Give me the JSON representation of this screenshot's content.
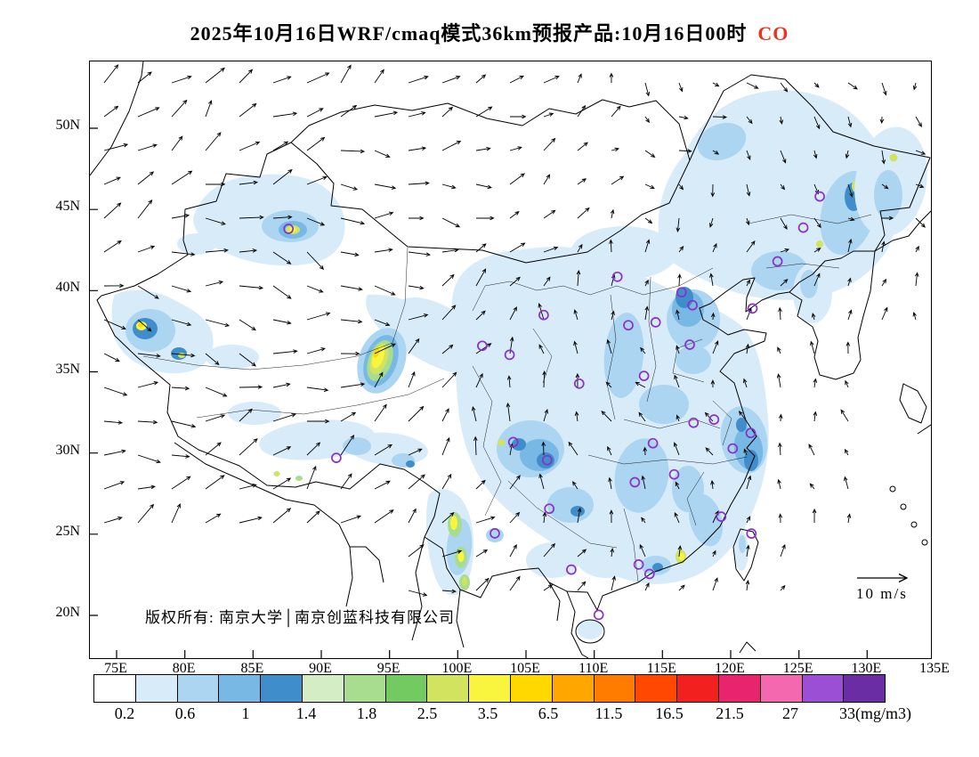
{
  "title": {
    "main": "2025年10月16日WRF/cmaq模式36km预报产品:10月16日00时",
    "species": "CO"
  },
  "map": {
    "copyright": "版权所有: 南京大学│南京创蓝科技有限公司",
    "wind_legend_label": "10 m/s",
    "axes": {
      "lat_labels": [
        "50N",
        "45N",
        "40N",
        "35N",
        "30N",
        "25N",
        "20N"
      ],
      "lon_labels": [
        "75E",
        "80E",
        "85E",
        "90E",
        "95E",
        "100E",
        "105E",
        "110E",
        "115E",
        "120E",
        "125E",
        "130E",
        "135E"
      ]
    },
    "marker_color": "#8b2fc9",
    "stations": [
      [
        87.6,
        43.8
      ],
      [
        91.1,
        29.7
      ],
      [
        101.8,
        36.6
      ],
      [
        103.8,
        36.05
      ],
      [
        106.3,
        38.5
      ],
      [
        111.7,
        40.85
      ],
      [
        112.5,
        37.87
      ],
      [
        114.5,
        38.05
      ],
      [
        116.4,
        39.9
      ],
      [
        117.2,
        39.1
      ],
      [
        117.0,
        36.67
      ],
      [
        113.65,
        34.75
      ],
      [
        108.9,
        34.27
      ],
      [
        104.07,
        30.67
      ],
      [
        106.55,
        29.56
      ],
      [
        114.3,
        30.6
      ],
      [
        117.28,
        31.86
      ],
      [
        118.78,
        32.06
      ],
      [
        121.47,
        31.23
      ],
      [
        120.15,
        30.28
      ],
      [
        112.98,
        28.2
      ],
      [
        115.86,
        28.68
      ],
      [
        106.71,
        26.57
      ],
      [
        102.72,
        25.05
      ],
      [
        108.32,
        22.82
      ],
      [
        113.26,
        23.13
      ],
      [
        114.05,
        22.55
      ],
      [
        119.3,
        26.08
      ],
      [
        121.52,
        25.04
      ],
      [
        110.33,
        20.03
      ],
      [
        123.43,
        41.8
      ],
      [
        125.32,
        43.88
      ],
      [
        126.53,
        45.8
      ],
      [
        121.6,
        38.9
      ]
    ]
  },
  "colorbar": {
    "labels": [
      "0.2",
      "0.6",
      "1",
      "1.4",
      "1.8",
      "2.5",
      "3.5",
      "6.5",
      "11.5",
      "16.5",
      "21.5",
      "27",
      "33(mg/m3)"
    ],
    "colors": [
      "#ffffff",
      "#d8ebf9",
      "#abd5f1",
      "#77b8e4",
      "#3f8ecb",
      "#d5edc4",
      "#a8dd90",
      "#72ca60",
      "#d2e45f",
      "#f9f53e",
      "#ffd800",
      "#ffa700",
      "#ff7c00",
      "#ff4900",
      "#f2201e",
      "#e8246f",
      "#f468b0",
      "#9a4fd5",
      "#6b2da3"
    ]
  }
}
